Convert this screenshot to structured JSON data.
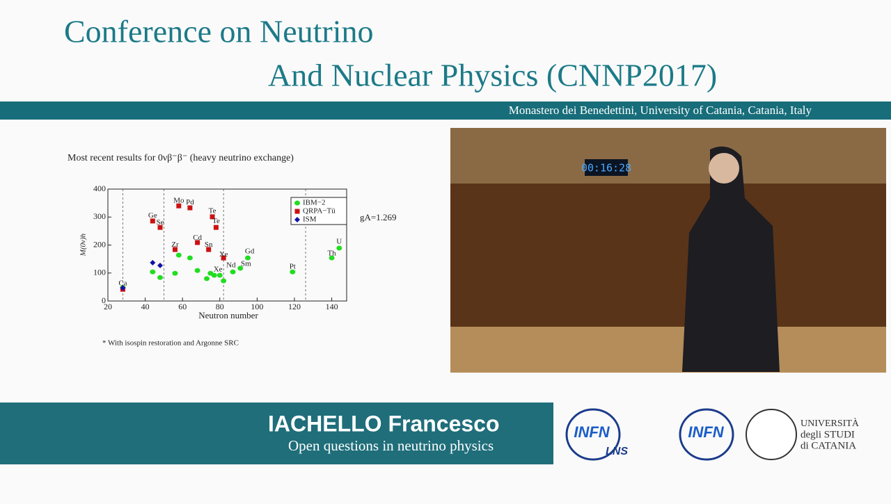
{
  "header": {
    "title_line1": "Conference on Neutrino",
    "title_line2": "And Nuclear Physics (CNNP2017)",
    "venue": "Monastero dei Benedettini, University of Catania, Catania, Italy"
  },
  "chart_data": {
    "type": "scatter",
    "title": "Most recent results for 0νβ⁻β⁻ (heavy neutrino exchange)",
    "x_label": "Neutron number",
    "y_label": "M(0ν)h",
    "annotation": "gA=1.269",
    "footnote": "* With isospin restoration and Argonne SRC",
    "xlim": [
      20,
      148
    ],
    "xticks": [
      20,
      40,
      60,
      80,
      100,
      120,
      140
    ],
    "ylim": [
      0,
      400
    ],
    "yticks": [
      0,
      100,
      200,
      300,
      400
    ],
    "vlines": [
      28,
      50,
      82,
      126
    ],
    "legend": "upper right",
    "series": [
      {
        "name": "IBM−2",
        "color": "#22dd22",
        "x": [
          28,
          44,
          48,
          56,
          58,
          64,
          68,
          73,
          75,
          77,
          80,
          82,
          87,
          91,
          95,
          119,
          140,
          144
        ],
        "values": [
          48,
          104,
          84,
          99,
          164,
          154,
          109,
          80,
          99,
          92,
          92,
          72,
          104,
          117,
          154,
          104,
          154,
          189
        ]
      },
      {
        "name": "QRPA−Tü",
        "color": "#cc1111",
        "x": [
          28,
          44,
          48,
          56,
          58,
          64,
          68,
          74,
          76,
          78,
          82
        ],
        "values": [
          42,
          286,
          263,
          184,
          340,
          333,
          209,
          184,
          301,
          263,
          154
        ]
      },
      {
        "name": "ISM",
        "color": "#1111aa",
        "x": [
          28,
          44,
          48
        ],
        "values": [
          47,
          137,
          127
        ]
      }
    ],
    "point_labels": [
      {
        "text": "Ca",
        "x": 28,
        "y": 62
      },
      {
        "text": "Ge",
        "x": 44,
        "y": 305
      },
      {
        "text": "Se",
        "x": 48,
        "y": 280
      },
      {
        "text": "Zr",
        "x": 56,
        "y": 200
      },
      {
        "text": "Mo",
        "x": 58,
        "y": 358
      },
      {
        "text": "Pd",
        "x": 64,
        "y": 352
      },
      {
        "text": "Cd",
        "x": 68,
        "y": 225
      },
      {
        "text": "Sn",
        "x": 74,
        "y": 200
      },
      {
        "text": "Te",
        "x": 76,
        "y": 320
      },
      {
        "text": "Te",
        "x": 78,
        "y": 285
      },
      {
        "text": "Xe",
        "x": 82,
        "y": 165
      },
      {
        "text": "Xe",
        "x": 79,
        "y": 112
      },
      {
        "text": "Nd",
        "x": 86,
        "y": 127
      },
      {
        "text": "Sm",
        "x": 94,
        "y": 132
      },
      {
        "text": "Gd",
        "x": 96,
        "y": 176
      },
      {
        "text": "Pt",
        "x": 119,
        "y": 122
      },
      {
        "text": "Th",
        "x": 140,
        "y": 169
      },
      {
        "text": "U",
        "x": 144,
        "y": 211
      }
    ]
  },
  "video": {
    "clock": "00:16:28"
  },
  "banner": {
    "speaker": "IACHELLO Francesco",
    "talk": "Open questions in neutrino physics"
  },
  "logos": {
    "infn": "INFN",
    "lns": "LNS",
    "infn2": "INFN",
    "university": [
      "UNIVERSITÀ",
      "degli STUDI",
      "di CATANIA"
    ]
  }
}
